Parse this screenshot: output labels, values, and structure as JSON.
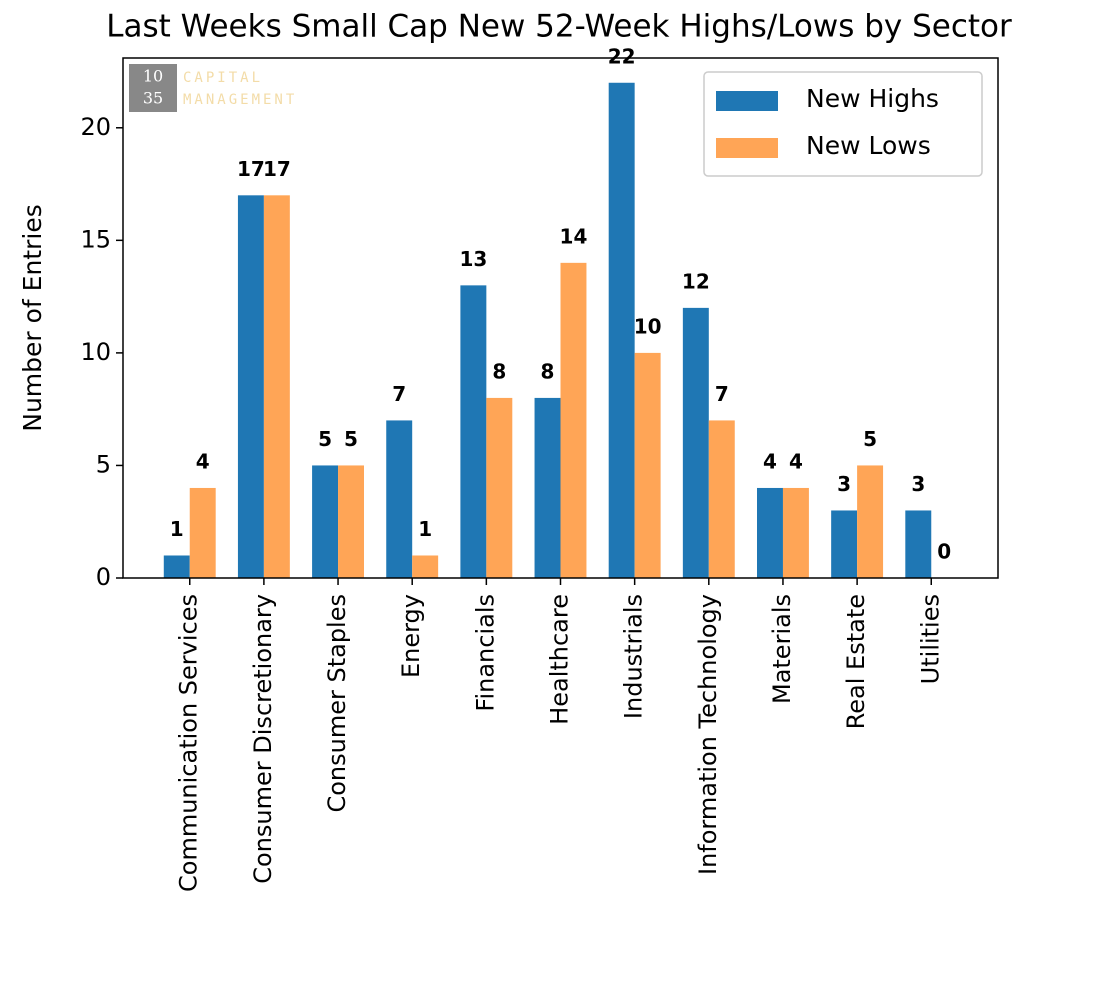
{
  "chart_data": {
    "type": "bar",
    "title": "Last Weeks Small Cap New 52-Week Highs/Lows by Sector",
    "y_label": "Number of Entries",
    "logo": {
      "number_top": "10",
      "number_bottom": "35",
      "line1": "CAPITAL",
      "line2": "MANAGEMENT"
    },
    "categories": [
      "Communication Services",
      "Consumer Discretionary",
      "Consumer Staples",
      "Energy",
      "Financials",
      "Healthcare",
      "Industrials",
      "Information Technology",
      "Materials",
      "Real Estate",
      "Utilities"
    ],
    "series": [
      {
        "name": "New Highs",
        "color": "#1f77b4",
        "values": [
          1,
          17,
          5,
          7,
          13,
          8,
          22,
          12,
          4,
          3,
          3
        ]
      },
      {
        "name": "New Lows",
        "color": "#ffa556",
        "values": [
          4,
          17,
          5,
          1,
          8,
          14,
          10,
          7,
          4,
          5,
          0
        ]
      }
    ],
    "ylim": [
      0,
      23.1
    ],
    "yticks": [
      0,
      5,
      10,
      15,
      20
    ],
    "legend": "upper right",
    "value_labels_shown": true
  }
}
